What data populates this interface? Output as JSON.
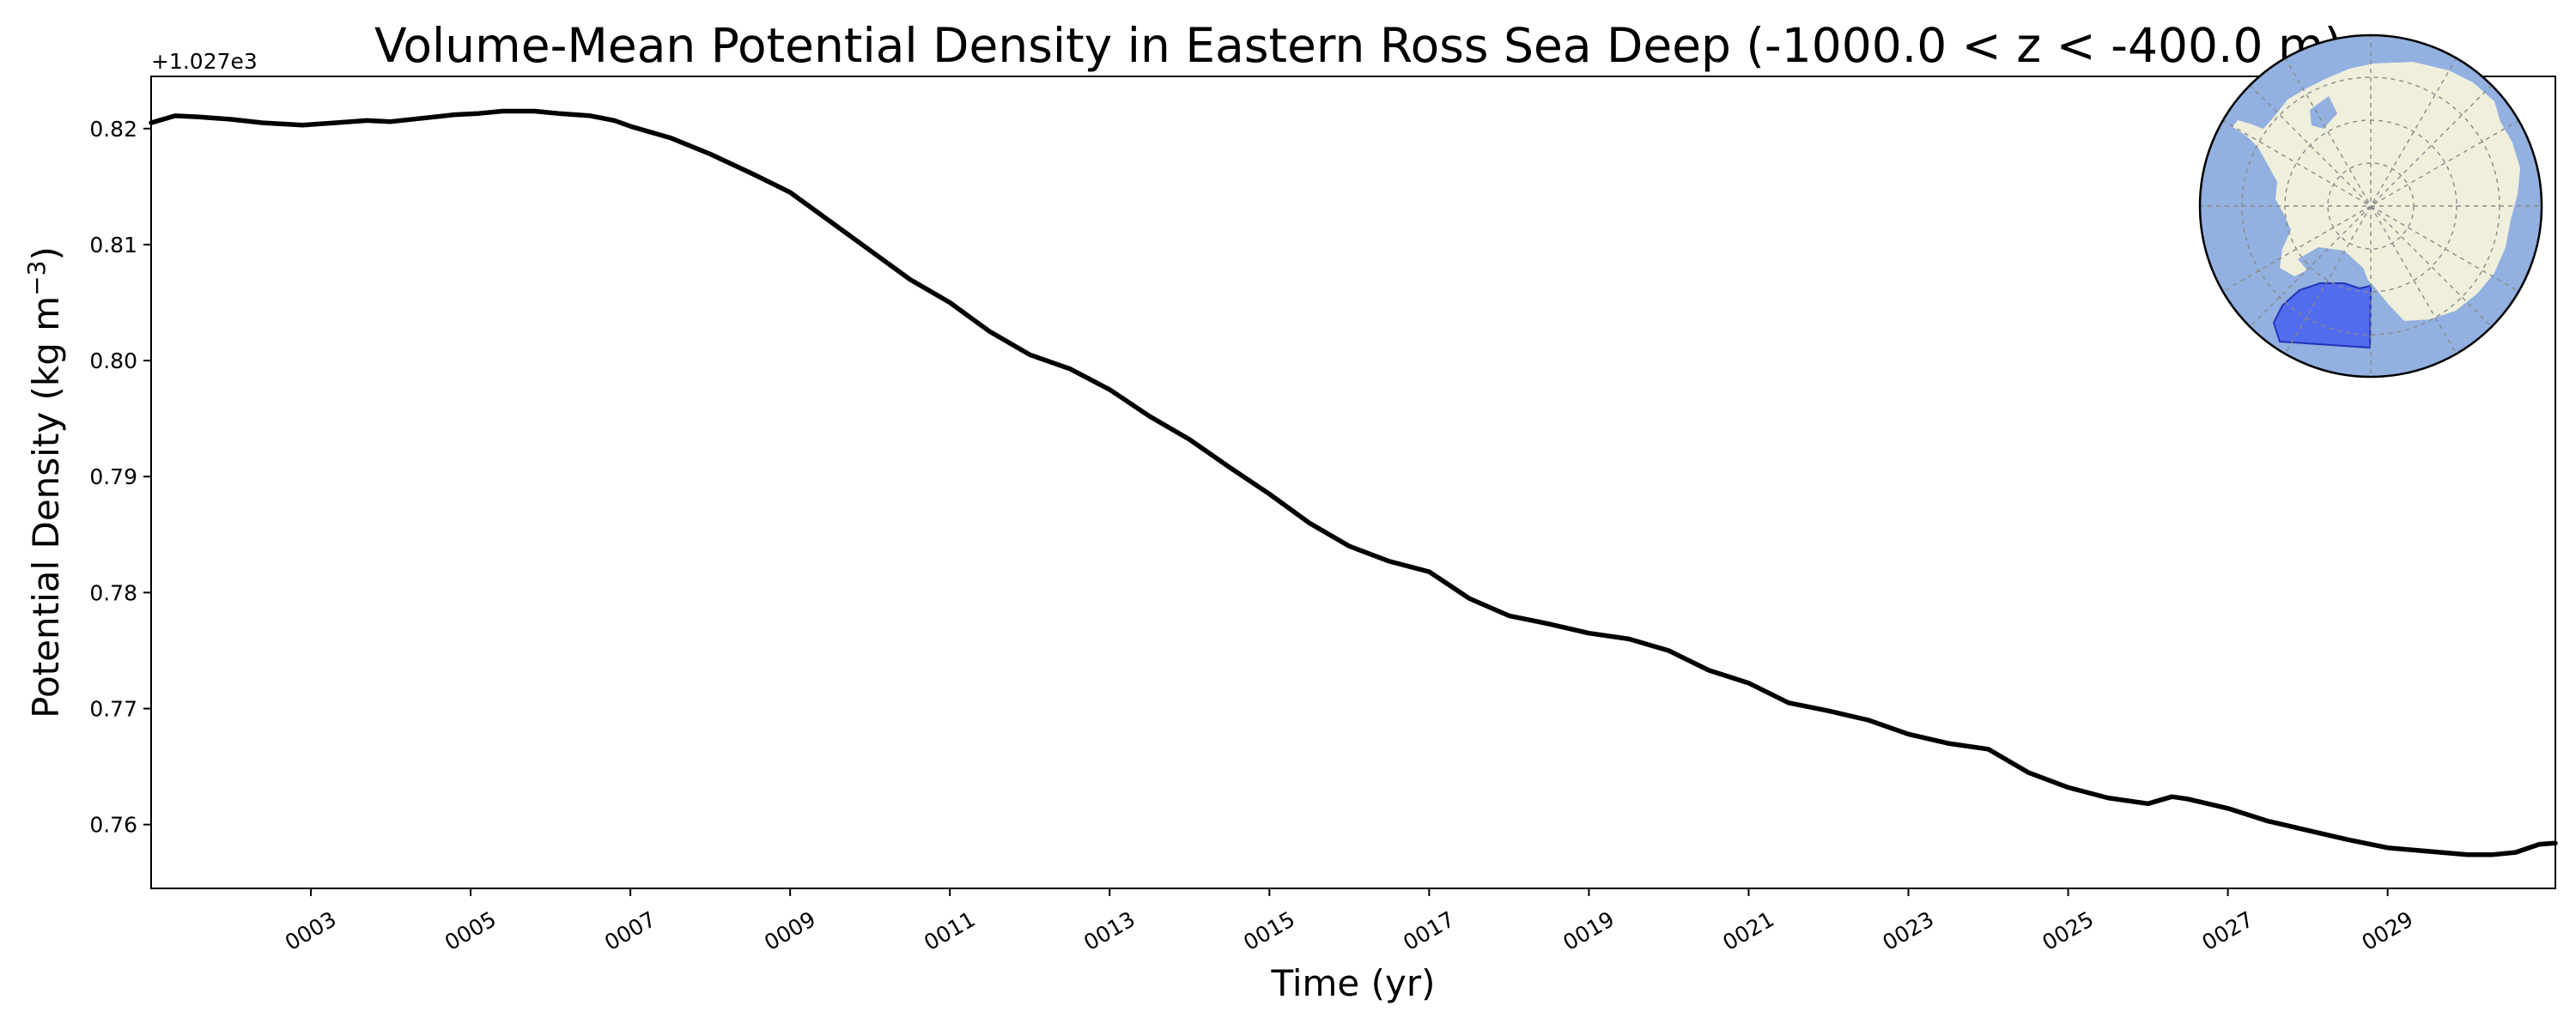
{
  "chart_data": {
    "type": "line",
    "title": "Volume-Mean Potential Density in Eastern Ross Sea Deep (-1000.0 < z < -400.0 m)",
    "xlabel": "Time (yr)",
    "ylabel_main": "Potential Density (kg m",
    "ylabel_sup": "−3",
    "ylabel_close": ")",
    "offset_text": "+1.027e3",
    "offset_value": 1027.0,
    "xlim": [
      1,
      31.1
    ],
    "ylim": [
      0.7545,
      0.8245
    ],
    "x_ticks": [
      3,
      5,
      7,
      9,
      11,
      13,
      15,
      17,
      19,
      21,
      23,
      25,
      27,
      29
    ],
    "x_tick_labels": [
      "0003",
      "0005",
      "0007",
      "0009",
      "0011",
      "0013",
      "0015",
      "0017",
      "0019",
      "0021",
      "0023",
      "0025",
      "0027",
      "0029"
    ],
    "y_ticks": [
      0.76,
      0.77,
      0.78,
      0.79,
      0.8,
      0.81,
      0.82
    ],
    "y_tick_labels": [
      "0.76",
      "0.77",
      "0.78",
      "0.79",
      "0.80",
      "0.81",
      "0.82"
    ],
    "grid": false,
    "series": [
      {
        "color": "#000000",
        "x": [
          1.0,
          1.3,
          1.6,
          2.0,
          2.4,
          2.9,
          3.3,
          3.7,
          4.0,
          4.4,
          4.8,
          5.1,
          5.4,
          5.8,
          6.1,
          6.5,
          6.8,
          7.0,
          7.5,
          8.0,
          8.5,
          9.0,
          9.5,
          10.0,
          10.5,
          11.0,
          11.5,
          12.0,
          12.5,
          13.0,
          13.5,
          14.0,
          14.5,
          15.0,
          15.5,
          16.0,
          16.5,
          17.0,
          17.5,
          18.0,
          18.5,
          19.0,
          19.5,
          20.0,
          20.5,
          21.0,
          21.5,
          22.0,
          22.5,
          23.0,
          23.5,
          24.0,
          24.5,
          25.0,
          25.5,
          26.0,
          26.3,
          26.5,
          27.0,
          27.5,
          28.0,
          28.5,
          29.0,
          29.5,
          30.0,
          30.3,
          30.6,
          30.9,
          31.1
        ],
        "y": [
          0.8205,
          0.8211,
          0.821,
          0.8208,
          0.8205,
          0.8203,
          0.8205,
          0.8207,
          0.8206,
          0.8209,
          0.8212,
          0.8213,
          0.8215,
          0.8215,
          0.8213,
          0.8211,
          0.8207,
          0.8202,
          0.8192,
          0.8178,
          0.8162,
          0.8145,
          0.812,
          0.8095,
          0.807,
          0.805,
          0.8025,
          0.8005,
          0.7993,
          0.7975,
          0.7952,
          0.7932,
          0.7908,
          0.7885,
          0.786,
          0.784,
          0.7827,
          0.7818,
          0.7795,
          0.778,
          0.7773,
          0.7765,
          0.776,
          0.775,
          0.7733,
          0.7722,
          0.7705,
          0.7698,
          0.769,
          0.7678,
          0.767,
          0.7665,
          0.7645,
          0.7632,
          0.7623,
          0.7618,
          0.7624,
          0.7622,
          0.7614,
          0.7603,
          0.7595,
          0.7587,
          0.758,
          0.7577,
          0.7574,
          0.7574,
          0.7576,
          0.7583,
          0.7584
        ]
      }
    ]
  },
  "inset_map": {
    "ocean_color": "#92b0e0",
    "land_color": "#efefdc",
    "region_color": "#4660f0",
    "region_edge_color": "#2333b8",
    "border_color": "#000000"
  }
}
